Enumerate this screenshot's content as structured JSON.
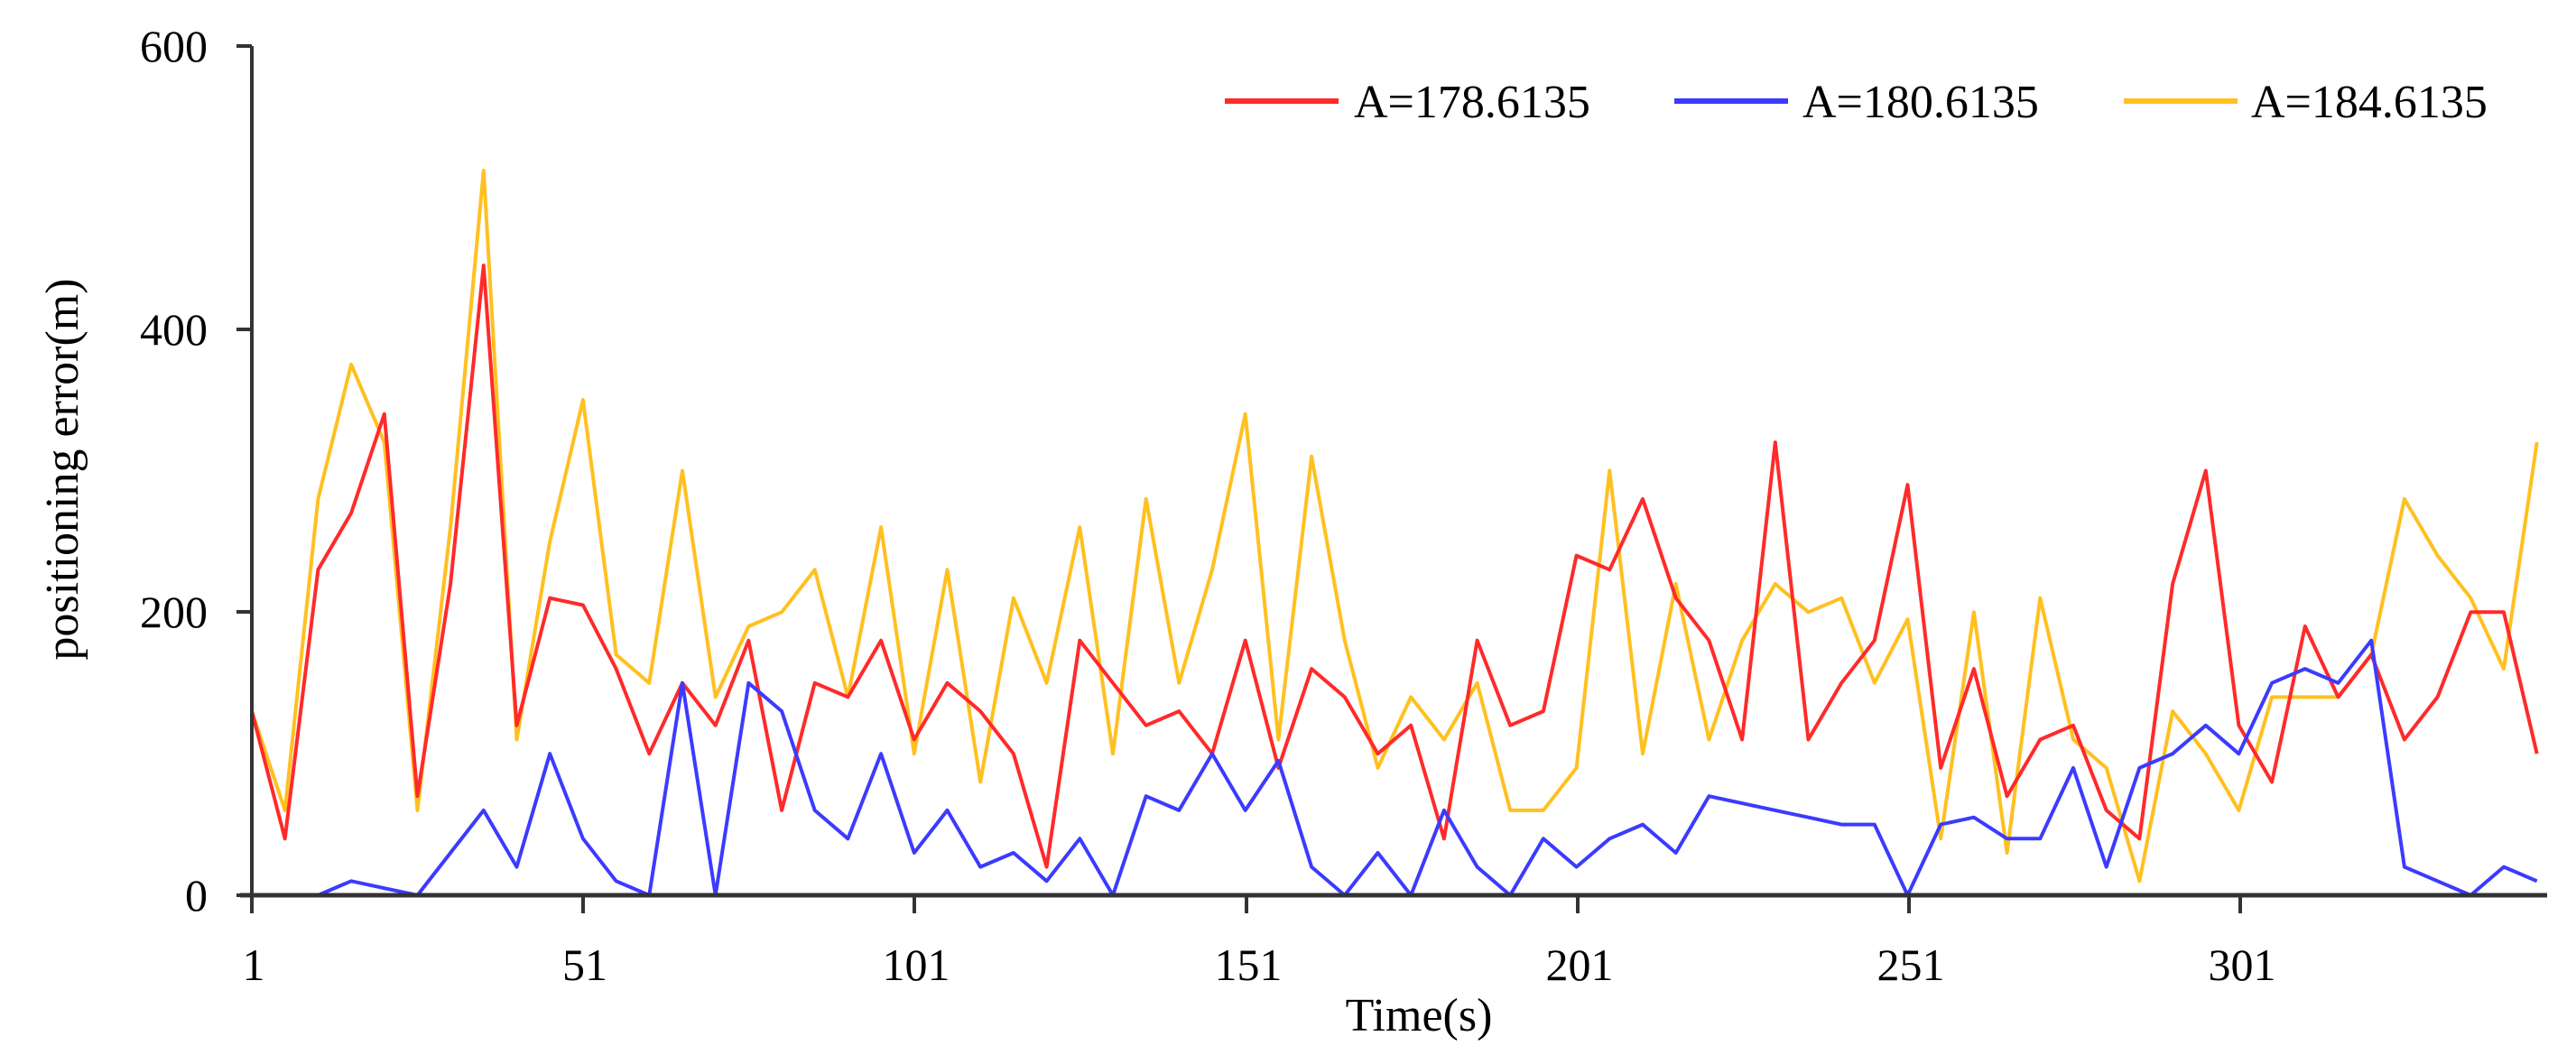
{
  "chart_data": {
    "type": "line",
    "title": "",
    "xlabel": "Time(s)",
    "ylabel": "positioning error(m)",
    "xlim": [
      1,
      347
    ],
    "ylim": [
      0,
      600
    ],
    "grid": false,
    "legend_position": "top-right",
    "x_ticks": [
      "1",
      "51",
      "101",
      "151",
      "201",
      "251",
      "301"
    ],
    "y_ticks": [
      "0",
      "200",
      "400",
      "600"
    ],
    "x": [
      1,
      6,
      11,
      16,
      21,
      26,
      31,
      36,
      41,
      46,
      51,
      56,
      61,
      66,
      71,
      76,
      81,
      86,
      91,
      96,
      101,
      106,
      111,
      116,
      121,
      126,
      131,
      136,
      141,
      146,
      151,
      156,
      161,
      166,
      171,
      176,
      181,
      186,
      191,
      196,
      201,
      206,
      211,
      216,
      221,
      226,
      231,
      236,
      241,
      246,
      251,
      256,
      261,
      266,
      271,
      276,
      281,
      286,
      291,
      296,
      301,
      306,
      311,
      316,
      321,
      326,
      331,
      336,
      341,
      346
    ],
    "series": [
      {
        "name": "A=178.6135",
        "color": "#ff2a2a",
        "values": [
          130,
          40,
          230,
          270,
          340,
          70,
          220,
          445,
          120,
          210,
          205,
          160,
          100,
          150,
          120,
          180,
          60,
          150,
          140,
          180,
          110,
          150,
          130,
          100,
          20,
          180,
          150,
          120,
          130,
          100,
          180,
          90,
          160,
          140,
          100,
          120,
          40,
          180,
          120,
          130,
          240,
          230,
          280,
          210,
          180,
          110,
          320,
          110,
          150,
          180,
          290,
          90,
          160,
          70,
          110,
          120,
          60,
          40,
          220,
          300,
          120,
          80,
          190,
          140,
          170,
          110,
          140,
          200,
          200,
          100
        ]
      },
      {
        "name": "A=180.6135",
        "color": "#3b3bff",
        "values": [
          0,
          0,
          0,
          10,
          5,
          0,
          30,
          60,
          20,
          100,
          40,
          10,
          0,
          150,
          0,
          150,
          130,
          60,
          40,
          100,
          30,
          60,
          20,
          30,
          10,
          40,
          0,
          70,
          60,
          100,
          60,
          95,
          20,
          0,
          30,
          0,
          60,
          20,
          0,
          40,
          20,
          40,
          50,
          30,
          70,
          65,
          60,
          55,
          50,
          50,
          0,
          50,
          55,
          40,
          40,
          90,
          20,
          90,
          100,
          120,
          100,
          150,
          160,
          150,
          180,
          20,
          10,
          0,
          20,
          10
        ]
      },
      {
        "name": "A=184.6135",
        "color": "#ffc020",
        "values": [
          130,
          60,
          280,
          375,
          320,
          60,
          260,
          512,
          110,
          250,
          350,
          170,
          150,
          300,
          140,
          190,
          200,
          230,
          140,
          260,
          100,
          230,
          80,
          210,
          150,
          260,
          100,
          280,
          150,
          230,
          340,
          110,
          310,
          180,
          90,
          140,
          110,
          150,
          60,
          60,
          90,
          300,
          100,
          220,
          110,
          180,
          220,
          200,
          210,
          150,
          195,
          40,
          200,
          30,
          210,
          110,
          90,
          10,
          130,
          100,
          60,
          140,
          140,
          140,
          170,
          280,
          240,
          210,
          160,
          320
        ]
      }
    ]
  },
  "legend": {
    "items": [
      {
        "label": "A=178.6135",
        "color": "#ff2a2a"
      },
      {
        "label": "A=180.6135",
        "color": "#3b3bff"
      },
      {
        "label": "A=184.6135",
        "color": "#ffc020"
      }
    ]
  },
  "axes": {
    "xlabel": "Time(s)",
    "ylabel": "positioning error(m)",
    "x_ticks": [
      "1",
      "51",
      "101",
      "151",
      "201",
      "251",
      "301"
    ],
    "y_ticks": [
      "0",
      "200",
      "400",
      "600"
    ]
  }
}
